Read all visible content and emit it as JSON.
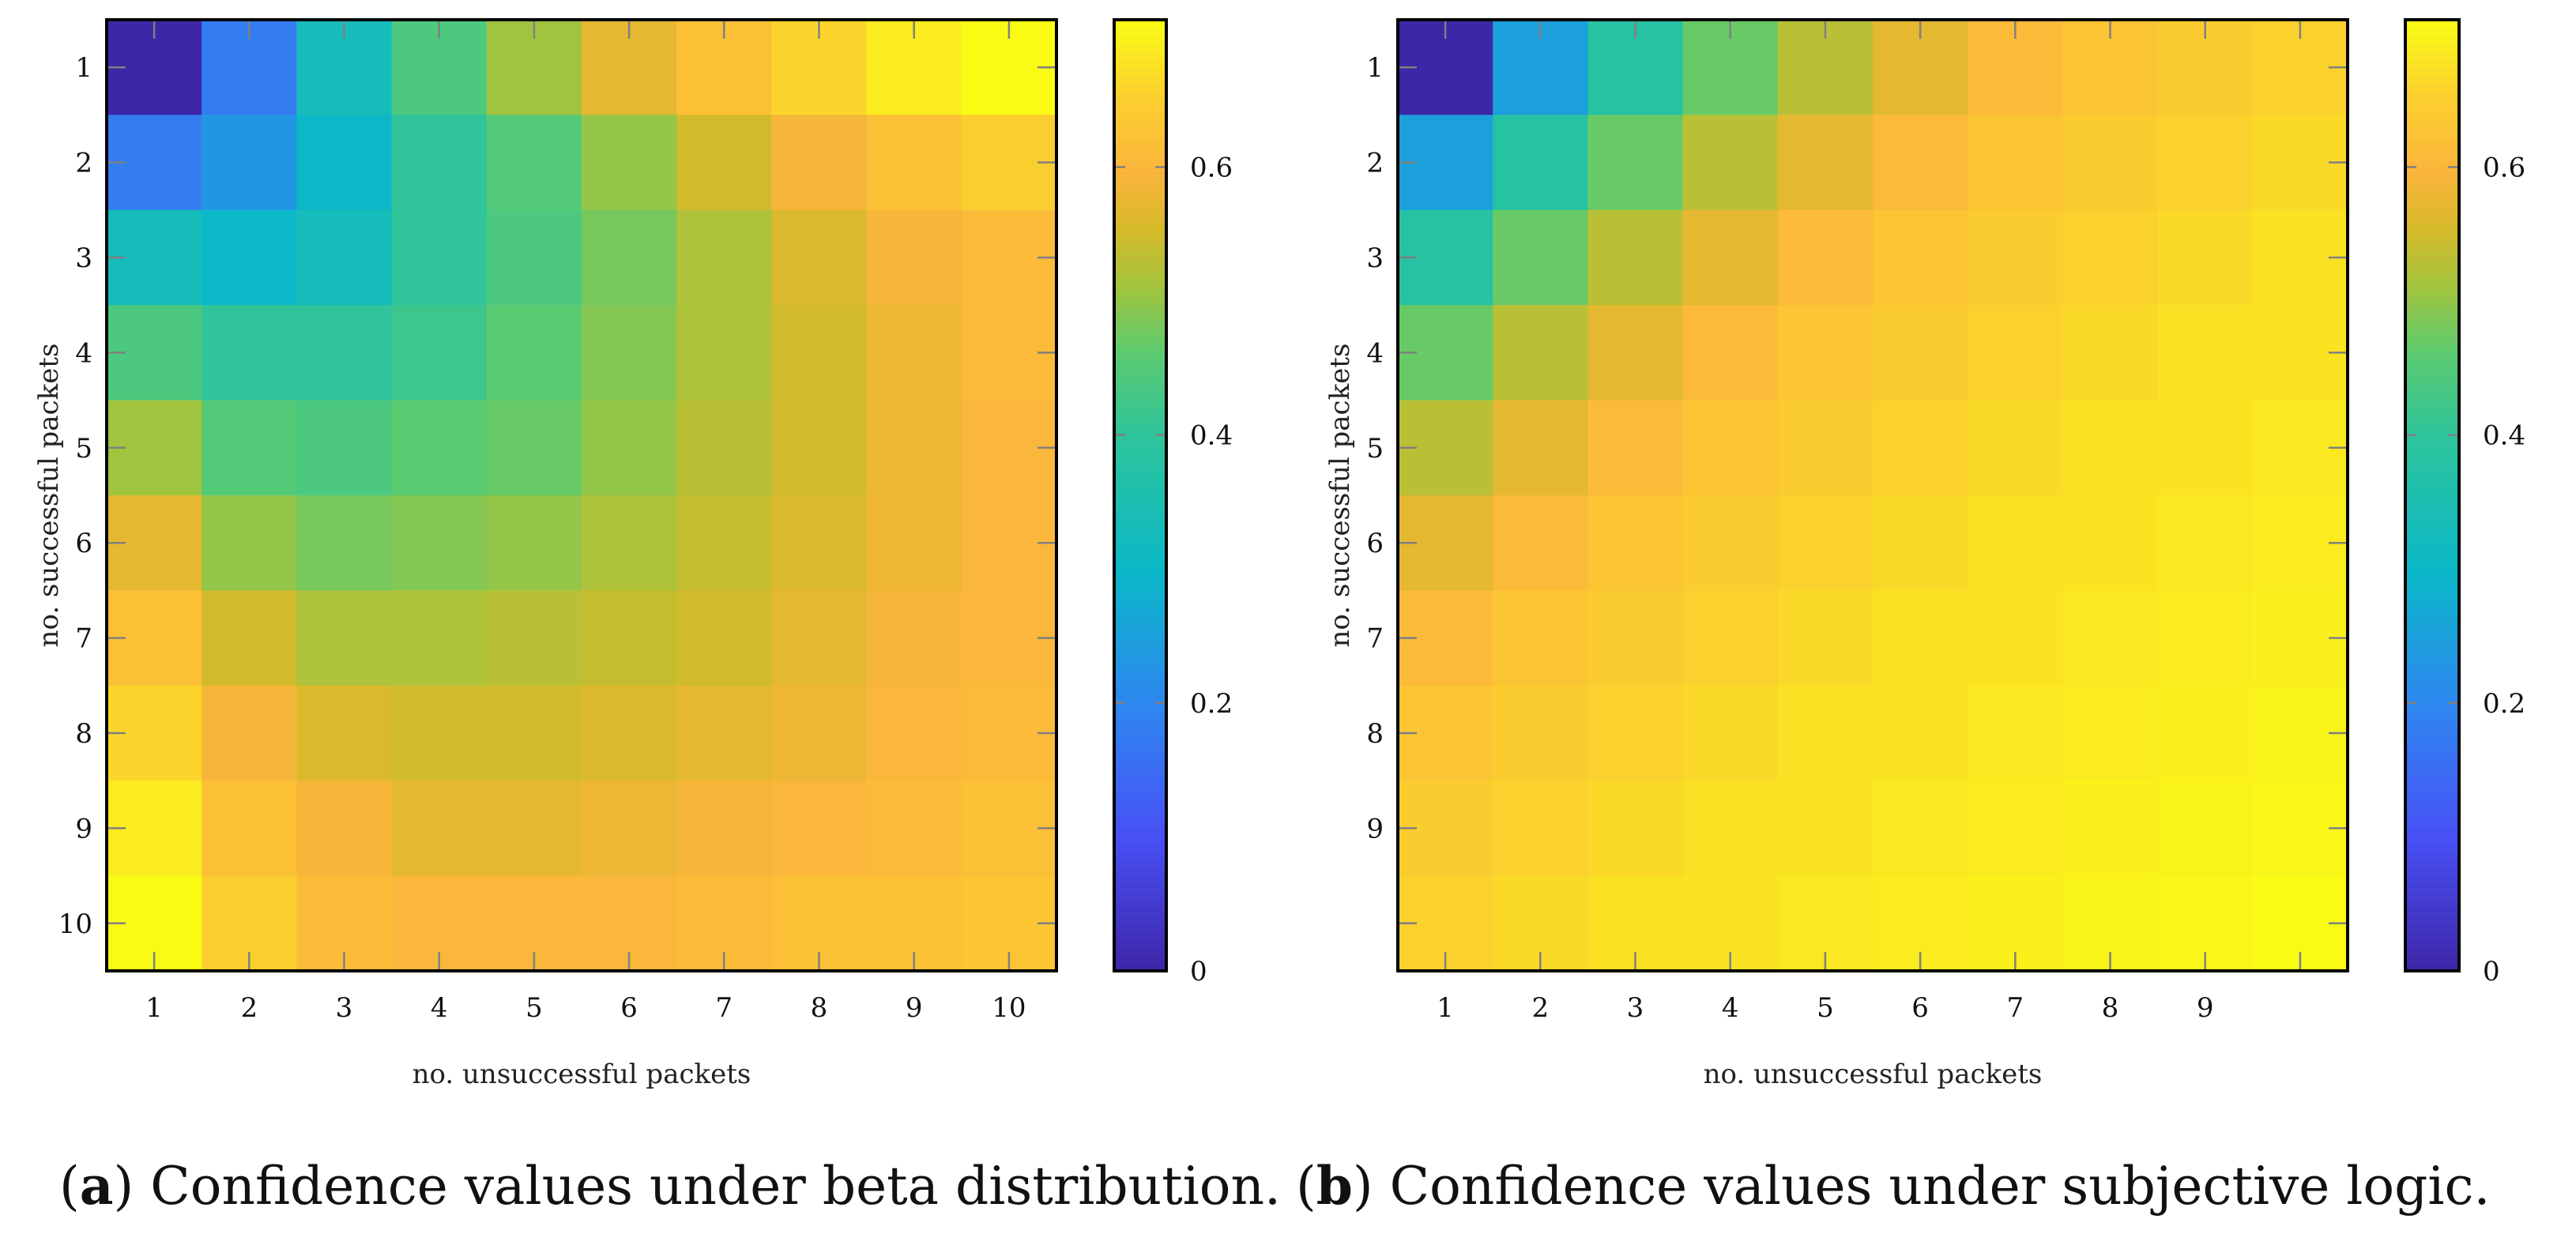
{
  "colors": {
    "frame": "#000000",
    "tick_mark": "#808080"
  },
  "chart_data": [
    {
      "type": "heatmap",
      "id": "a",
      "caption_label": "a",
      "caption_text": "Confidence values under beta distribution.",
      "xlabel": "no. unsuccessful packets",
      "ylabel": "no. successful packets",
      "x_ticks": [
        "1",
        "2",
        "3",
        "4",
        "5",
        "6",
        "7",
        "8",
        "9",
        "10"
      ],
      "y_ticks": [
        "1",
        "2",
        "3",
        "4",
        "5",
        "6",
        "7",
        "8",
        "9",
        "10"
      ],
      "colormap": "parula",
      "clim": [
        0,
        0.71
      ],
      "colorbar_ticks": [
        "0",
        "0.2",
        "0.4",
        "0.6"
      ],
      "colorbar_tick_values": [
        0,
        0.2,
        0.4,
        0.6
      ],
      "values": [
        [
          0.0,
          0.18,
          0.33,
          0.44,
          0.51,
          0.57,
          0.62,
          0.66,
          0.69,
          0.71
        ],
        [
          0.18,
          0.23,
          0.3,
          0.4,
          0.45,
          0.5,
          0.55,
          0.59,
          0.62,
          0.65
        ],
        [
          0.33,
          0.3,
          0.33,
          0.4,
          0.44,
          0.48,
          0.52,
          0.56,
          0.59,
          0.61
        ],
        [
          0.44,
          0.4,
          0.4,
          0.42,
          0.46,
          0.49,
          0.52,
          0.55,
          0.58,
          0.61
        ],
        [
          0.51,
          0.45,
          0.44,
          0.46,
          0.47,
          0.5,
          0.53,
          0.55,
          0.58,
          0.6
        ],
        [
          0.57,
          0.5,
          0.48,
          0.49,
          0.5,
          0.52,
          0.54,
          0.56,
          0.58,
          0.6
        ],
        [
          0.62,
          0.55,
          0.52,
          0.52,
          0.53,
          0.54,
          0.55,
          0.57,
          0.59,
          0.6
        ],
        [
          0.66,
          0.59,
          0.56,
          0.55,
          0.55,
          0.56,
          0.57,
          0.58,
          0.6,
          0.61
        ],
        [
          0.69,
          0.62,
          0.59,
          0.57,
          0.57,
          0.58,
          0.59,
          0.6,
          0.61,
          0.62
        ],
        [
          0.71,
          0.65,
          0.61,
          0.6,
          0.6,
          0.6,
          0.61,
          0.62,
          0.62,
          0.63
        ]
      ]
    },
    {
      "type": "heatmap",
      "id": "b",
      "caption_label": "b",
      "caption_text": "Confidence values under subjective logic.",
      "xlabel": "no. unsuccessful packets",
      "ylabel": "no. successful packets",
      "x_ticks": [
        "1",
        "2",
        "3",
        "4",
        "5",
        "6",
        "7",
        "8",
        "9",
        ""
      ],
      "y_ticks": [
        "1",
        "2",
        "3",
        "4",
        "5",
        "6",
        "7",
        "8",
        "9",
        ""
      ],
      "colormap": "parula",
      "clim": [
        0,
        0.71
      ],
      "colorbar_ticks": [
        "0",
        "0.2",
        "0.4",
        "0.6"
      ],
      "colorbar_tick_values": [
        0,
        0.2,
        0.4,
        0.6
      ],
      "values": [
        [
          0.0,
          0.25,
          0.38,
          0.47,
          0.53,
          0.57,
          0.61,
          0.63,
          0.645,
          0.655
        ],
        [
          0.25,
          0.38,
          0.47,
          0.53,
          0.57,
          0.61,
          0.63,
          0.645,
          0.655,
          0.665
        ],
        [
          0.38,
          0.47,
          0.53,
          0.57,
          0.61,
          0.63,
          0.645,
          0.655,
          0.665,
          0.675
        ],
        [
          0.47,
          0.53,
          0.57,
          0.61,
          0.63,
          0.645,
          0.655,
          0.665,
          0.675,
          0.68
        ],
        [
          0.53,
          0.57,
          0.61,
          0.63,
          0.645,
          0.655,
          0.665,
          0.675,
          0.68,
          0.685
        ],
        [
          0.57,
          0.61,
          0.63,
          0.645,
          0.655,
          0.665,
          0.675,
          0.68,
          0.685,
          0.69
        ],
        [
          0.61,
          0.63,
          0.645,
          0.655,
          0.665,
          0.675,
          0.68,
          0.685,
          0.69,
          0.695
        ],
        [
          0.63,
          0.645,
          0.655,
          0.665,
          0.675,
          0.68,
          0.685,
          0.69,
          0.695,
          0.7
        ],
        [
          0.645,
          0.655,
          0.665,
          0.675,
          0.68,
          0.685,
          0.69,
          0.695,
          0.7,
          0.705
        ],
        [
          0.655,
          0.665,
          0.675,
          0.68,
          0.685,
          0.69,
          0.695,
          0.7,
          0.705,
          0.71
        ]
      ]
    }
  ]
}
